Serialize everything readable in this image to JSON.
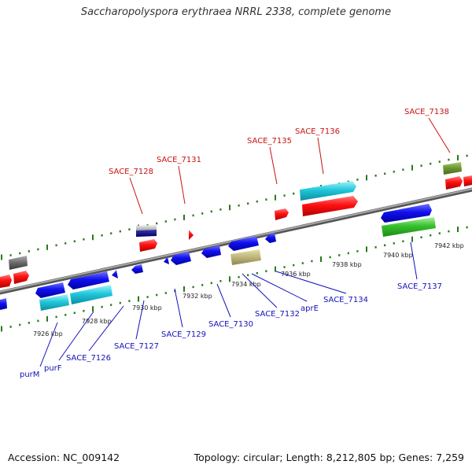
{
  "title": "Saccharopolyspora erythraea NRRL 2338, complete genome",
  "footer": {
    "accession": "Accession: NC_009142",
    "stats": "Topology: circular; Length: 8,212,805 bp; Genes: 7,259"
  },
  "colors": {
    "backbone": "#8c8c8c",
    "forward_label": "#cc1111",
    "reverse_label": "#1111bb",
    "forward_tick": "#2a7a1a",
    "reverse_tick": "#2a7a1a"
  },
  "scale": {
    "unit": "kbp",
    "ticks": [
      {
        "label": "7926 kbp"
      },
      {
        "label": "7928 kbp"
      },
      {
        "label": "7930 kbp"
      },
      {
        "label": "7932 kbp"
      },
      {
        "label": "7934 kbp"
      },
      {
        "label": "7936 kbp"
      },
      {
        "label": "7938 kbp"
      },
      {
        "label": "7940 kbp"
      },
      {
        "label": "7942 kbp"
      }
    ]
  },
  "forward_labels": [
    {
      "name": "SACE_7128"
    },
    {
      "name": "SACE_7131"
    },
    {
      "name": "SACE_7135"
    },
    {
      "name": "SACE_7136"
    },
    {
      "name": "SACE_7138"
    }
  ],
  "reverse_labels": [
    {
      "name": "purM"
    },
    {
      "name": "purF"
    },
    {
      "name": "SACE_7126"
    },
    {
      "name": "SACE_7127"
    },
    {
      "name": "SACE_7129"
    },
    {
      "name": "SACE_7130"
    },
    {
      "name": "SACE_7132"
    },
    {
      "name": "aprE"
    },
    {
      "name": "SACE_7134"
    },
    {
      "name": "SACE_7137"
    }
  ]
}
